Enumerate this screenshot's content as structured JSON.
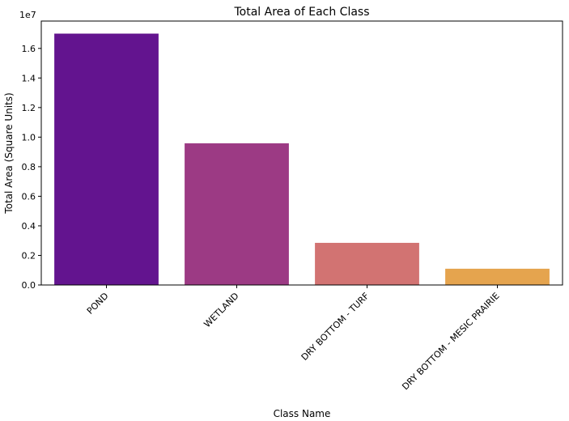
{
  "chart_data": {
    "type": "bar",
    "title": "Total Area of Each Class",
    "xlabel": "Class Name",
    "ylabel": "Total Area (Square Units)",
    "offset_label": "1e7",
    "categories": [
      "POND",
      "WETLAND",
      "DRY BOTTOM - TURF",
      "DRY BOTTOM - MESIC PRAIRIE"
    ],
    "values": [
      17000000,
      9580000,
      2850000,
      1100000
    ],
    "colors": [
      "#63148f",
      "#9c3a84",
      "#d27372",
      "#e5a44e"
    ],
    "ylim": [
      0,
      17850000
    ],
    "yticks": [
      0,
      2000000,
      4000000,
      6000000,
      8000000,
      10000000,
      12000000,
      14000000,
      16000000
    ],
    "ytick_labels": [
      "0.0",
      "0.2",
      "0.4",
      "0.6",
      "0.8",
      "1.0",
      "1.2",
      "1.4",
      "1.6"
    ],
    "grid": false,
    "legend": "none"
  }
}
